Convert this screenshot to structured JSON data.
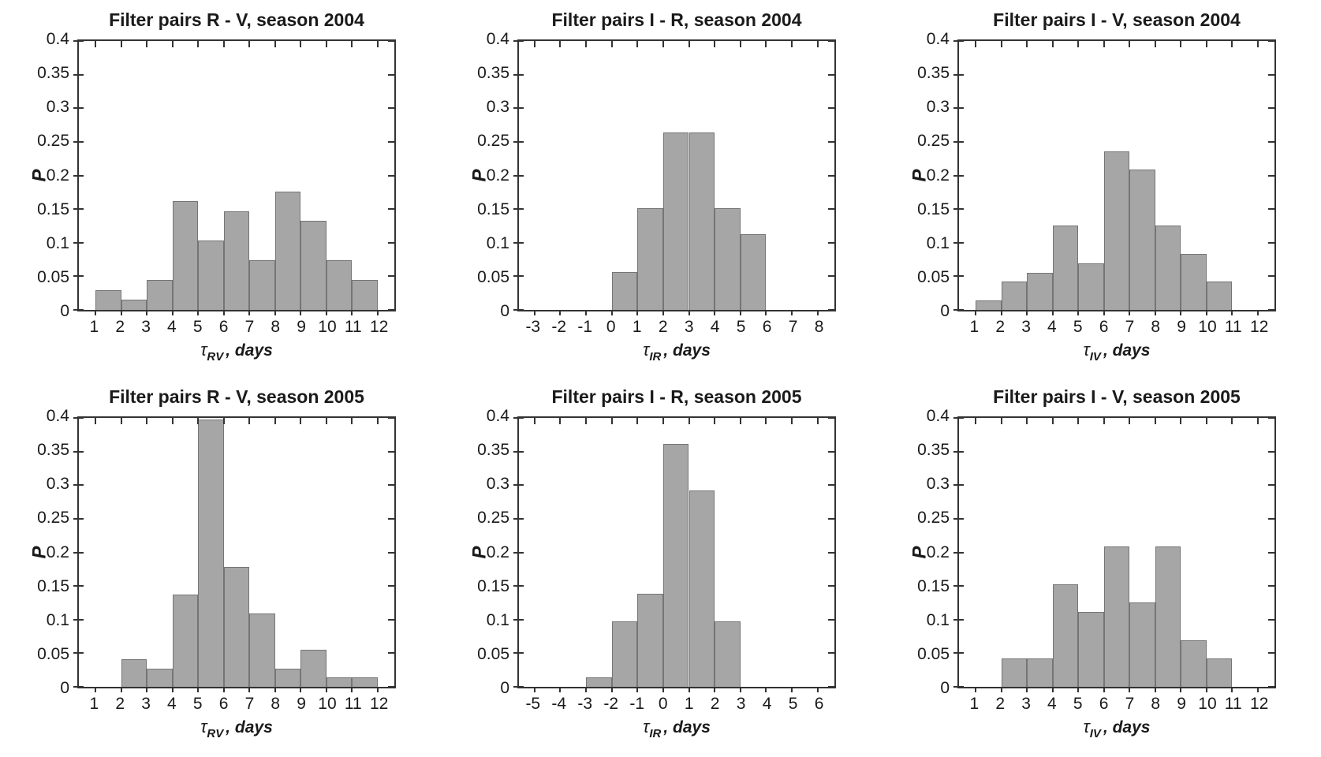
{
  "figure": {
    "background": "#ffffff",
    "bar_fill": "#a6a6a6",
    "bar_edge": "#757575",
    "axis_color": "#333333",
    "text_color": "#1a1a1a"
  },
  "chart_data": [
    {
      "type": "bar",
      "title": "Filter pairs R - V, season 2004",
      "ylabel": "P",
      "xlabel": {
        "tau": "τ",
        "sub": "RV",
        "rest": ", days"
      },
      "bin_start": 1,
      "bin_width": 1,
      "values": [
        0.0294,
        0.0147,
        0.0441,
        0.1618,
        0.1029,
        0.1471,
        0.0735,
        0.1765,
        0.1324,
        0.0735,
        0.0441
      ],
      "xlim": [
        0.35,
        12.65
      ],
      "ylim": [
        0,
        0.4
      ],
      "xticks": [
        1,
        2,
        3,
        4,
        5,
        6,
        7,
        8,
        9,
        10,
        11,
        12
      ],
      "yticks": [
        "0",
        "0.05",
        "0.1",
        "0.15",
        "0.2",
        "0.25",
        "0.3",
        "0.35",
        "0.4"
      ],
      "grid": false,
      "legend": "none"
    },
    {
      "type": "bar",
      "title": "Filter pairs I - R, season 2004",
      "ylabel": "P",
      "xlabel": {
        "tau": "τ",
        "sub": "IR",
        "rest": ", days"
      },
      "bin_start": 0,
      "bin_width": 1,
      "values": [
        0.0566,
        0.1509,
        0.2642,
        0.2642,
        0.1509,
        0.1132
      ],
      "xlim": [
        -3.6,
        8.65
      ],
      "ylim": [
        0,
        0.4
      ],
      "xticks": [
        -3,
        -2,
        -1,
        0,
        1,
        2,
        3,
        4,
        5,
        6,
        7,
        8
      ],
      "yticks": [
        "0",
        "0.05",
        "0.1",
        "0.15",
        "0.2",
        "0.25",
        "0.3",
        "0.35",
        "0.4"
      ],
      "grid": false,
      "legend": "none"
    },
    {
      "type": "bar",
      "title": "Filter pairs I - V, season 2004",
      "ylabel": "P",
      "xlabel": {
        "tau": "τ",
        "sub": "IV",
        "rest": ", days"
      },
      "bin_start": 1,
      "bin_width": 1,
      "values": [
        0.0139,
        0.0417,
        0.0556,
        0.125,
        0.0694,
        0.2361,
        0.2083,
        0.125,
        0.0833,
        0.0417
      ],
      "xlim": [
        0.35,
        12.65
      ],
      "ylim": [
        0,
        0.4
      ],
      "xticks": [
        1,
        2,
        3,
        4,
        5,
        6,
        7,
        8,
        9,
        10,
        11,
        12
      ],
      "yticks": [
        "0",
        "0.05",
        "0.1",
        "0.15",
        "0.2",
        "0.25",
        "0.3",
        "0.35",
        "0.4"
      ],
      "grid": false,
      "legend": "none"
    },
    {
      "type": "bar",
      "title": "Filter pairs R - V, season 2005",
      "ylabel": "P",
      "xlabel": {
        "tau": "τ",
        "sub": "RV",
        "rest": ", days"
      },
      "bin_start": 2,
      "bin_width": 1,
      "values": [
        0.0411,
        0.0274,
        0.137,
        0.3973,
        0.1781,
        0.1096,
        0.0274,
        0.0548,
        0.0137,
        0.0137
      ],
      "xlim": [
        0.35,
        12.65
      ],
      "ylim": [
        0,
        0.4
      ],
      "xticks": [
        1,
        2,
        3,
        4,
        5,
        6,
        7,
        8,
        9,
        10,
        11,
        12
      ],
      "yticks": [
        "0",
        "0.05",
        "0.1",
        "0.15",
        "0.2",
        "0.25",
        "0.3",
        "0.35",
        "0.4"
      ],
      "grid": false,
      "legend": "none"
    },
    {
      "type": "bar",
      "title": "Filter pairs I - R, season 2005",
      "ylabel": "P",
      "xlabel": {
        "tau": "τ",
        "sub": "IR",
        "rest": ", days"
      },
      "bin_start": -3,
      "bin_width": 1,
      "values": [
        0.0139,
        0.0972,
        0.1389,
        0.3611,
        0.2917,
        0.0972
      ],
      "xlim": [
        -5.6,
        6.65
      ],
      "ylim": [
        0,
        0.4
      ],
      "xticks": [
        -5,
        -4,
        -3,
        -2,
        -1,
        0,
        1,
        2,
        3,
        4,
        5,
        6
      ],
      "yticks": [
        "0",
        "0.05",
        "0.1",
        "0.15",
        "0.2",
        "0.25",
        "0.3",
        "0.35",
        "0.4"
      ],
      "grid": false,
      "legend": "none"
    },
    {
      "type": "bar",
      "title": "Filter pairs I - V, season 2005",
      "ylabel": "P",
      "xlabel": {
        "tau": "τ",
        "sub": "IV",
        "rest": ", days"
      },
      "bin_start": 2,
      "bin_width": 1,
      "values": [
        0.0417,
        0.0417,
        0.1528,
        0.1111,
        0.2083,
        0.125,
        0.2083,
        0.0694,
        0.0417
      ],
      "xlim": [
        0.35,
        12.65
      ],
      "ylim": [
        0,
        0.4
      ],
      "xticks": [
        1,
        2,
        3,
        4,
        5,
        6,
        7,
        8,
        9,
        10,
        11,
        12
      ],
      "yticks": [
        "0",
        "0.05",
        "0.1",
        "0.15",
        "0.2",
        "0.25",
        "0.3",
        "0.35",
        "0.4"
      ],
      "grid": false,
      "legend": "none"
    }
  ]
}
